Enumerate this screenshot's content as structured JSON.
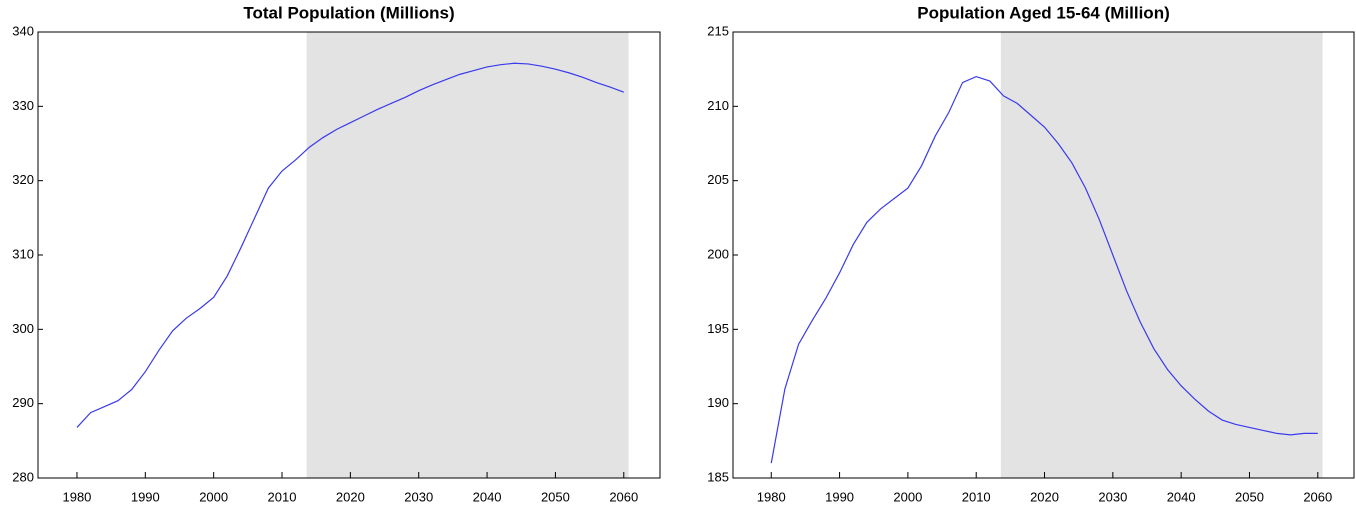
{
  "chart_data": [
    {
      "type": "line",
      "title": "Total Population (Millions)",
      "color": "#3a3aee",
      "x": [
        1980,
        1982,
        1984,
        1986,
        1988,
        1990,
        1992,
        1994,
        1996,
        1998,
        2000,
        2002,
        2004,
        2006,
        2008,
        2010,
        2012,
        2014,
        2016,
        2018,
        2020,
        2022,
        2024,
        2026,
        2028,
        2030,
        2032,
        2034,
        2036,
        2038,
        2040,
        2042,
        2044,
        2046,
        2048,
        2050,
        2052,
        2054,
        2056,
        2058,
        2060
      ],
      "values": [
        286.8,
        288.8,
        289.6,
        290.4,
        291.9,
        294.3,
        297.2,
        299.8,
        301.5,
        302.8,
        304.3,
        307.2,
        311.0,
        315.0,
        319.0,
        321.3,
        322.8,
        324.5,
        325.8,
        326.9,
        327.8,
        328.7,
        329.6,
        330.4,
        331.2,
        332.1,
        332.9,
        333.6,
        334.3,
        334.8,
        335.3,
        335.6,
        335.8,
        335.7,
        335.4,
        335.0,
        334.5,
        333.9,
        333.2,
        332.6,
        331.9
      ],
      "shaded_region": [
        2013.6,
        2060.7
      ],
      "shade_color": "#e3e3e3",
      "xlim": [
        1974.3,
        2065.3
      ],
      "xticks": [
        1980,
        1990,
        2000,
        2010,
        2020,
        2030,
        2040,
        2050,
        2060
      ],
      "ylim": [
        280,
        340
      ],
      "yticks": [
        280,
        290,
        300,
        310,
        320,
        330,
        340
      ]
    },
    {
      "type": "line",
      "title": "Population Aged 15-64 (Million)",
      "color": "#3a3aee",
      "x": [
        1980,
        1982,
        1984,
        1986,
        1988,
        1990,
        1992,
        1994,
        1996,
        1998,
        2000,
        2002,
        2004,
        2006,
        2008,
        2010,
        2012,
        2014,
        2016,
        2018,
        2020,
        2022,
        2024,
        2026,
        2028,
        2030,
        2032,
        2034,
        2036,
        2038,
        2040,
        2042,
        2044,
        2046,
        2048,
        2050,
        2052,
        2054,
        2056,
        2058,
        2060
      ],
      "values": [
        186.0,
        191.0,
        194.0,
        195.6,
        197.1,
        198.8,
        200.7,
        202.2,
        203.1,
        203.8,
        204.5,
        206.0,
        208.0,
        209.6,
        211.6,
        212.0,
        211.7,
        210.7,
        210.2,
        209.4,
        208.6,
        207.5,
        206.2,
        204.5,
        202.4,
        200.0,
        197.6,
        195.5,
        193.7,
        192.3,
        191.2,
        190.3,
        189.5,
        188.9,
        188.6,
        188.4,
        188.2,
        188.0,
        187.9,
        188.0,
        188.0
      ],
      "shaded_region": [
        2013.6,
        2060.7
      ],
      "shade_color": "#e3e3e3",
      "xlim": [
        1974.4,
        2065.3
      ],
      "xticks": [
        1980,
        1990,
        2000,
        2010,
        2020,
        2030,
        2040,
        2050,
        2060
      ],
      "ylim": [
        185,
        215
      ],
      "yticks": [
        185,
        190,
        195,
        200,
        205,
        210,
        215
      ]
    }
  ]
}
